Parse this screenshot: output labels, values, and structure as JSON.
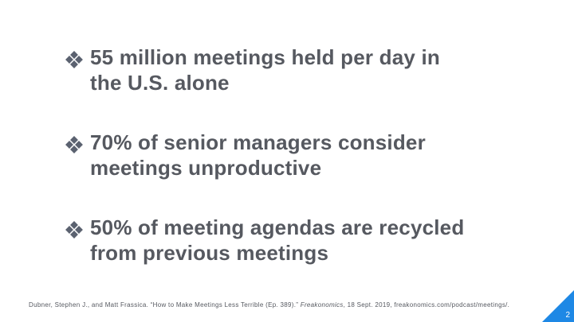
{
  "bullets": [
    {
      "icon": "diamond-bullet-icon",
      "lines": [
        "55 million meetings held per day in",
        "the U.S. alone"
      ]
    },
    {
      "icon": "diamond-bullet-icon",
      "lines": [
        "70% of senior managers consider",
        "meetings unproductive"
      ]
    },
    {
      "icon": "diamond-bullet-icon",
      "lines": [
        "50% of meeting agendas are recycled",
        "from previous meetings"
      ]
    }
  ],
  "citation": {
    "before": "Dubner, Stephen J., and Matt Frassica. “How to Make Meetings Less Terrible (Ep. 389).” ",
    "italic": "Freakonomics",
    "after": ", 18 Sept. 2019, freakonomics.com/podcast/meetings/."
  },
  "page_number": "2",
  "colors": {
    "text": "#565960",
    "accent": "#1e88e5",
    "bullet_marker": "#5b6270"
  }
}
